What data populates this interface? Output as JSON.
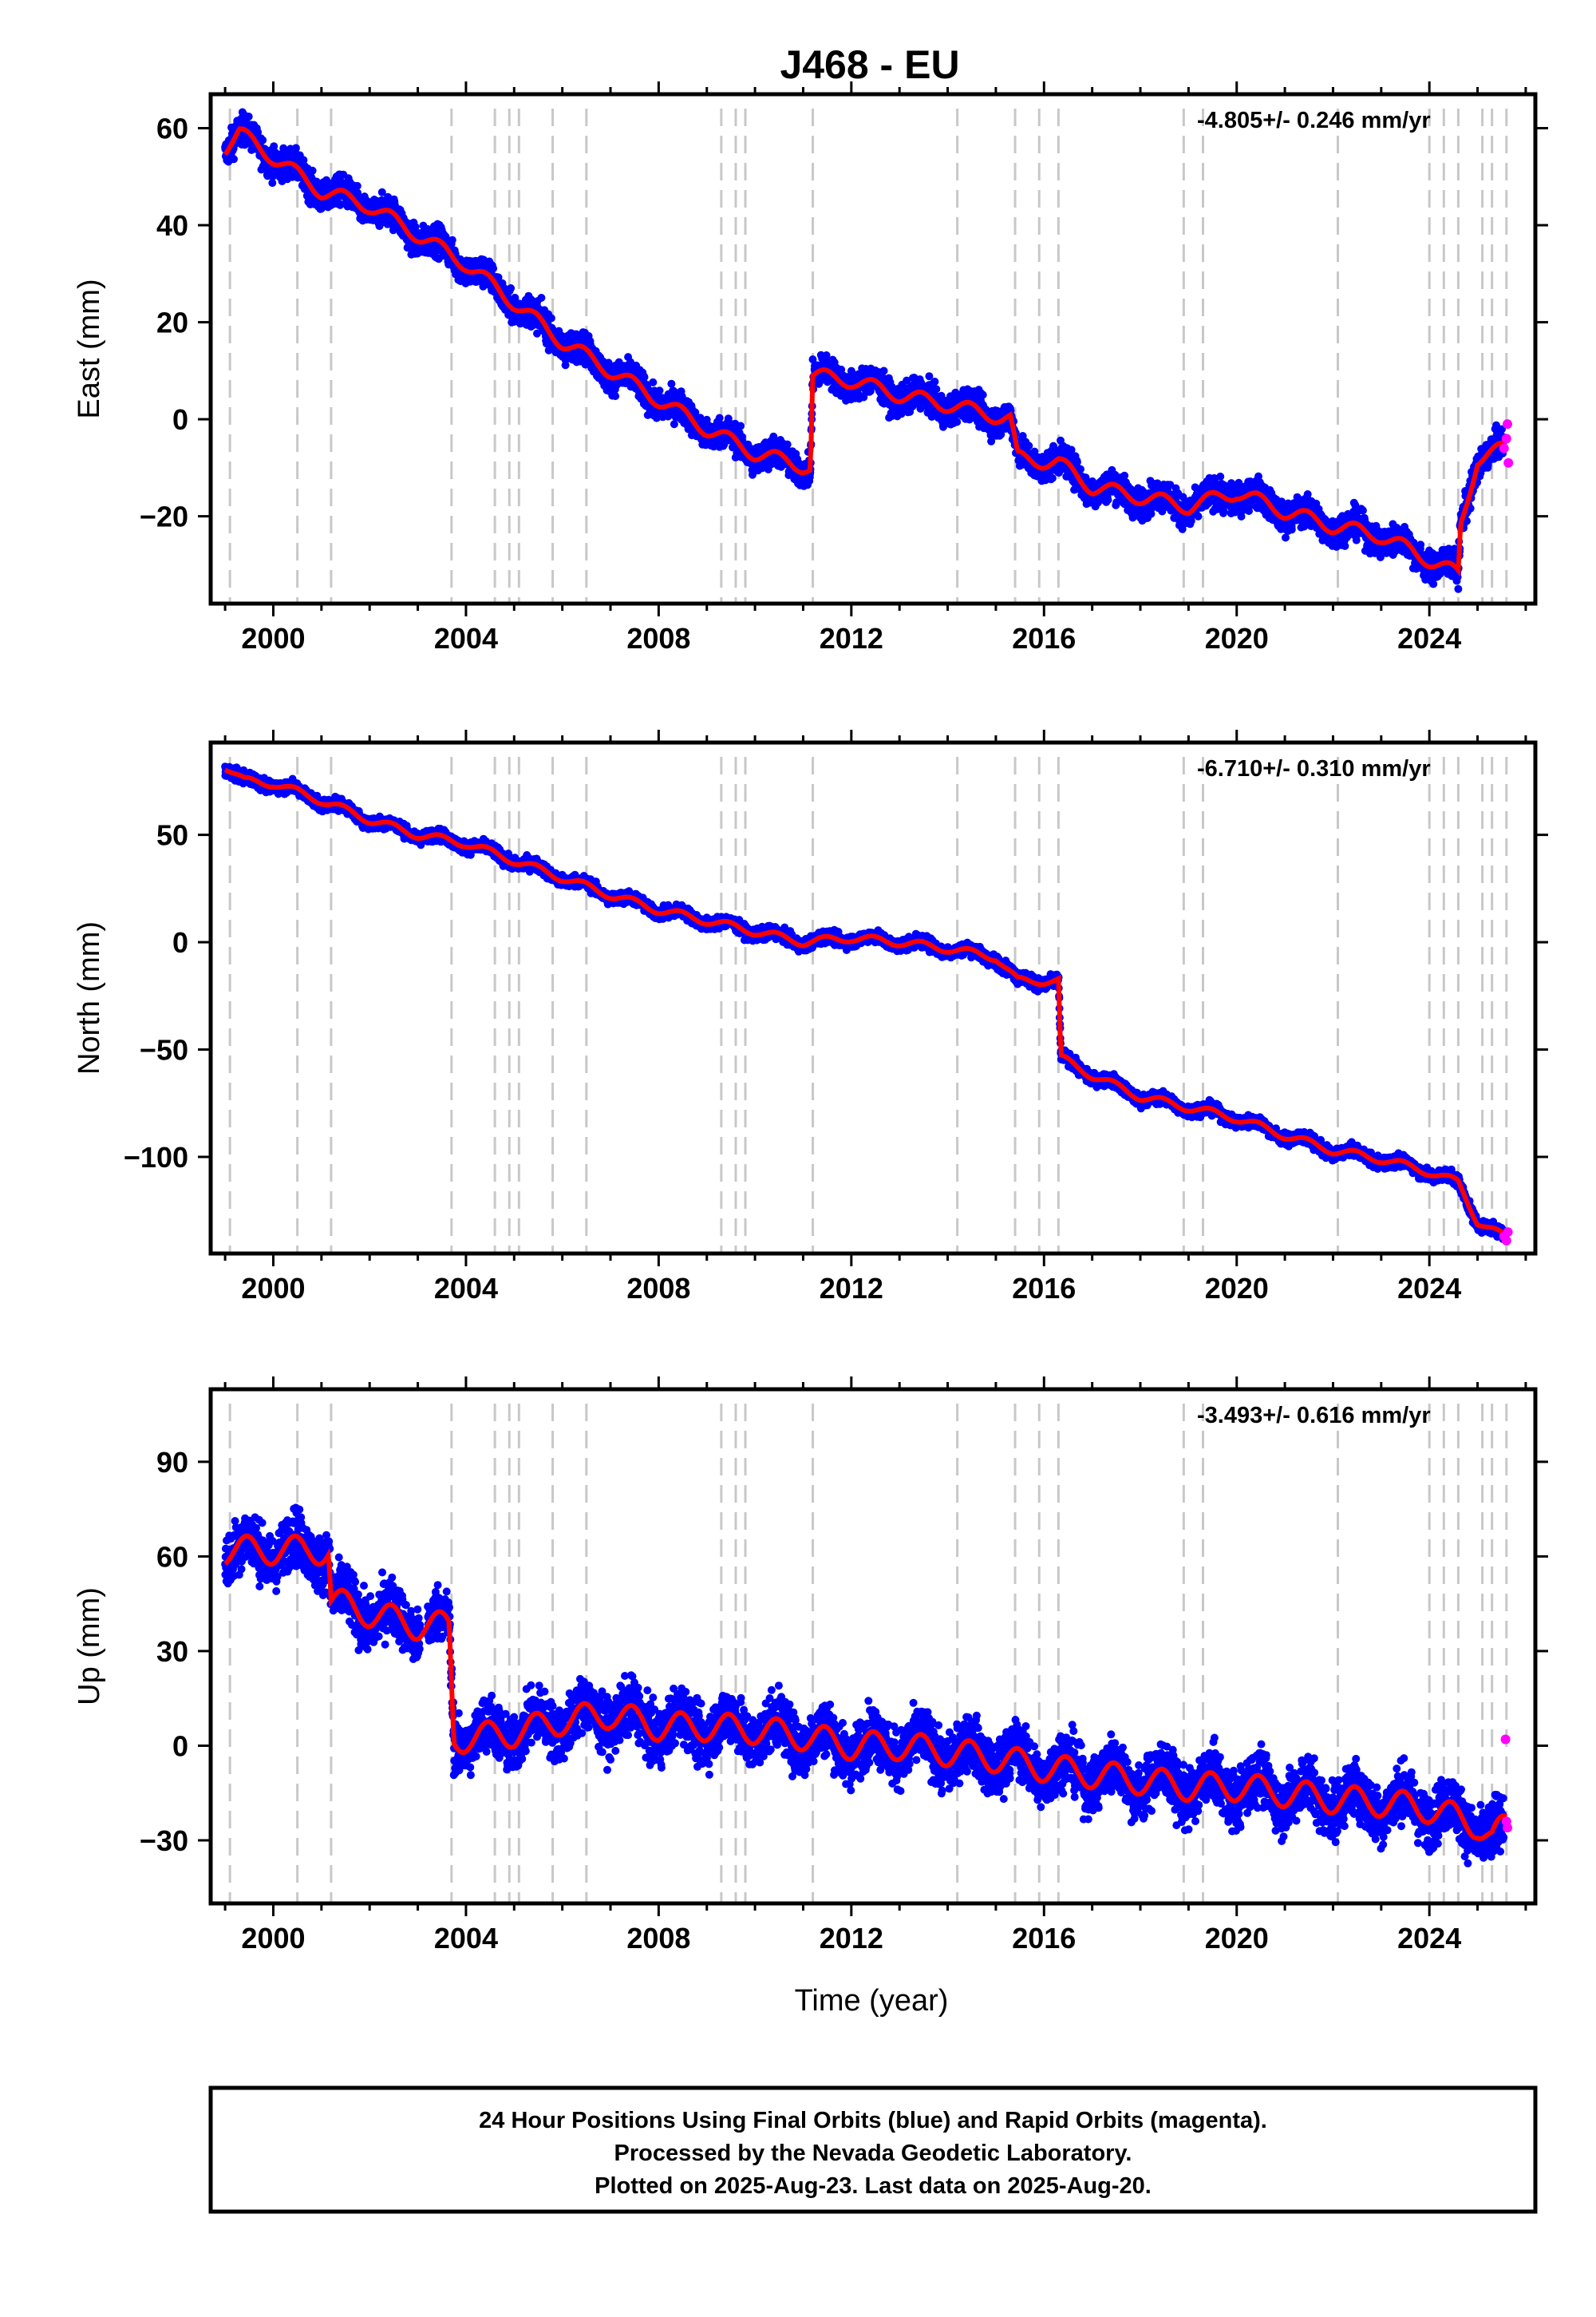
{
  "chart_data": {
    "type": "scatter",
    "title": "J468 - EU",
    "xlabel": "Time (year)",
    "xlim": [
      1998.7,
      2026.2
    ],
    "x_ticks": [
      2000,
      2004,
      2008,
      2012,
      2016,
      2020,
      2024
    ],
    "x_tick_labels": [
      "2000",
      "2004",
      "2008",
      "2012",
      "2016",
      "2020",
      "2024"
    ],
    "colors": {
      "final_orbits": "#0000ff",
      "rapid_orbits": "#ff00ff",
      "model": "#ff0000",
      "event_lines": "#c8c8c8"
    },
    "event_lines_year": [
      1999.1,
      2000.5,
      2001.2,
      2003.7,
      2004.6,
      2004.9,
      2005.1,
      2005.8,
      2006.5,
      2009.3,
      2009.6,
      2009.8,
      2011.2,
      2014.2,
      2015.4,
      2015.9,
      2016.3,
      2018.9,
      2019.3,
      2022.1,
      2024.0,
      2024.3,
      2024.6,
      2025.1,
      2025.3,
      2025.6
    ],
    "footer": [
      "24 Hour Positions Using Final Orbits (blue) and Rapid Orbits (magenta).",
      "Processed by the Nevada Geodetic Laboratory.",
      "Plotted on 2025-Aug-23. Last data on 2025-Aug-20."
    ],
    "panels": [
      {
        "name": "east",
        "ylabel": "East (mm)",
        "ylim": [
          -38,
          67
        ],
        "y_ticks": [
          60,
          40,
          20,
          0,
          -20
        ],
        "y_tick_labels": [
          "60",
          "40",
          "20",
          "0",
          "−20"
        ],
        "rate_label": "-4.805+/- 0.246 mm/yr",
        "trend": [
          {
            "t": 1999.0,
            "v": 56
          },
          {
            "t": 1999.3,
            "v": 59
          },
          {
            "t": 2000.0,
            "v": 54
          },
          {
            "t": 2001.0,
            "v": 47
          },
          {
            "t": 2002.0,
            "v": 44
          },
          {
            "t": 2003.0,
            "v": 38
          },
          {
            "t": 2004.0,
            "v": 32
          },
          {
            "t": 2005.0,
            "v": 24
          },
          {
            "t": 2006.0,
            "v": 16
          },
          {
            "t": 2007.0,
            "v": 10
          },
          {
            "t": 2008.0,
            "v": 4
          },
          {
            "t": 2009.0,
            "v": -2
          },
          {
            "t": 2010.0,
            "v": -7
          },
          {
            "t": 2011.15,
            "v": -10
          },
          {
            "t": 2011.2,
            "v": 9
          },
          {
            "t": 2012.0,
            "v": 8
          },
          {
            "t": 2013.0,
            "v": 5
          },
          {
            "t": 2014.0,
            "v": 3
          },
          {
            "t": 2015.3,
            "v": 0
          },
          {
            "t": 2015.45,
            "v": -8
          },
          {
            "t": 2016.3,
            "v": -9
          },
          {
            "t": 2017.0,
            "v": -14
          },
          {
            "t": 2018.0,
            "v": -16
          },
          {
            "t": 2019.0,
            "v": -18
          },
          {
            "t": 2020.0,
            "v": -15
          },
          {
            "t": 2021.0,
            "v": -19
          },
          {
            "t": 2022.0,
            "v": -22
          },
          {
            "t": 2023.0,
            "v": -24
          },
          {
            "t": 2024.6,
            "v": -32
          },
          {
            "t": 2024.65,
            "v": -22
          },
          {
            "t": 2025.0,
            "v": -8
          },
          {
            "t": 2025.6,
            "v": -6
          }
        ],
        "seasonal_amp": 1.5,
        "scatter": 2.8,
        "rapid": [
          {
            "t": 2025.55,
            "v": -6
          },
          {
            "t": 2025.6,
            "v": -4
          },
          {
            "t": 2025.62,
            "v": -1
          },
          {
            "t": 2025.64,
            "v": -9
          }
        ]
      },
      {
        "name": "north",
        "ylabel": "North (mm)",
        "ylim": [
          -145,
          93
        ],
        "y_ticks": [
          50,
          0,
          -50,
          -100
        ],
        "y_tick_labels": [
          "50",
          "0",
          "−50",
          "−100"
        ],
        "rate_label": "-6.710+/- 0.310 mm/yr",
        "trend": [
          {
            "t": 1999.0,
            "v": 82
          },
          {
            "t": 1999.4,
            "v": 75
          },
          {
            "t": 2000.0,
            "v": 74
          },
          {
            "t": 2001.0,
            "v": 66
          },
          {
            "t": 2002.0,
            "v": 57
          },
          {
            "t": 2003.0,
            "v": 50
          },
          {
            "t": 2004.0,
            "v": 46
          },
          {
            "t": 2005.0,
            "v": 38
          },
          {
            "t": 2006.0,
            "v": 30
          },
          {
            "t": 2007.0,
            "v": 22
          },
          {
            "t": 2008.0,
            "v": 15
          },
          {
            "t": 2009.0,
            "v": 10
          },
          {
            "t": 2010.0,
            "v": 5
          },
          {
            "t": 2011.0,
            "v": 0
          },
          {
            "t": 2012.0,
            "v": 2
          },
          {
            "t": 2013.0,
            "v": 0
          },
          {
            "t": 2014.0,
            "v": -3
          },
          {
            "t": 2015.0,
            "v": -7
          },
          {
            "t": 2015.45,
            "v": -18
          },
          {
            "t": 2016.3,
            "v": -18
          },
          {
            "t": 2016.35,
            "v": -54
          },
          {
            "t": 2017.0,
            "v": -62
          },
          {
            "t": 2018.0,
            "v": -72
          },
          {
            "t": 2019.0,
            "v": -77
          },
          {
            "t": 2020.0,
            "v": -82
          },
          {
            "t": 2021.0,
            "v": -90
          },
          {
            "t": 2022.0,
            "v": -97
          },
          {
            "t": 2023.0,
            "v": -101
          },
          {
            "t": 2024.0,
            "v": -107
          },
          {
            "t": 2024.6,
            "v": -112
          },
          {
            "t": 2025.0,
            "v": -130
          },
          {
            "t": 2025.6,
            "v": -138
          }
        ],
        "seasonal_amp": 1.8,
        "scatter": 2.6,
        "rapid": [
          {
            "t": 2025.55,
            "v": -137
          },
          {
            "t": 2025.6,
            "v": -139
          },
          {
            "t": 2025.63,
            "v": -135
          }
        ]
      },
      {
        "name": "up",
        "ylabel": "Up (mm)",
        "xlabel": "Time (year)",
        "ylim": [
          -50,
          113
        ],
        "y_ticks": [
          90,
          60,
          30,
          0,
          -30
        ],
        "y_tick_labels": [
          "90",
          "60",
          "30",
          "0",
          "−30"
        ],
        "rate_label": "-3.493+/- 0.616 mm/yr",
        "trend": [
          {
            "t": 1999.0,
            "v": 62
          },
          {
            "t": 2000.5,
            "v": 62
          },
          {
            "t": 2001.15,
            "v": 62
          },
          {
            "t": 2001.2,
            "v": 46
          },
          {
            "t": 2002.0,
            "v": 42
          },
          {
            "t": 2003.0,
            "v": 38
          },
          {
            "t": 2003.65,
            "v": 38
          },
          {
            "t": 2003.75,
            "v": 2
          },
          {
            "t": 2005.0,
            "v": 4
          },
          {
            "t": 2006.0,
            "v": 8
          },
          {
            "t": 2007.0,
            "v": 10
          },
          {
            "t": 2008.0,
            "v": 6
          },
          {
            "t": 2009.0,
            "v": 6
          },
          {
            "t": 2010.0,
            "v": 5
          },
          {
            "t": 2011.0,
            "v": 3
          },
          {
            "t": 2012.0,
            "v": 0
          },
          {
            "t": 2013.0,
            "v": 0
          },
          {
            "t": 2014.0,
            "v": -2
          },
          {
            "t": 2015.0,
            "v": -4
          },
          {
            "t": 2016.0,
            "v": -7
          },
          {
            "t": 2017.0,
            "v": -9
          },
          {
            "t": 2018.0,
            "v": -11
          },
          {
            "t": 2019.0,
            "v": -13
          },
          {
            "t": 2020.0,
            "v": -13
          },
          {
            "t": 2021.0,
            "v": -15
          },
          {
            "t": 2022.0,
            "v": -17
          },
          {
            "t": 2023.0,
            "v": -18
          },
          {
            "t": 2024.0,
            "v": -20
          },
          {
            "t": 2025.0,
            "v": -25
          },
          {
            "t": 2025.3,
            "v": -30
          },
          {
            "t": 2025.6,
            "v": -25
          }
        ],
        "seasonal_amp": 4.5,
        "scatter": 8,
        "rapid": [
          {
            "t": 2025.58,
            "v": 2
          },
          {
            "t": 2025.6,
            "v": -24
          },
          {
            "t": 2025.62,
            "v": -26
          }
        ]
      }
    ]
  }
}
